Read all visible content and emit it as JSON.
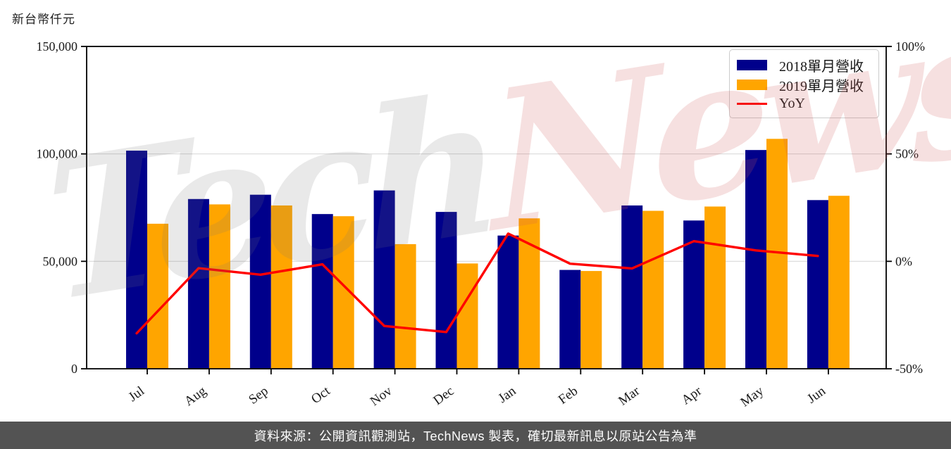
{
  "page": {
    "axis_title": "新台幣仟元"
  },
  "chart_data": {
    "type": "bar",
    "subtype": "grouped bars with YoY line overlay, dual y-axes",
    "categories": [
      "Jul",
      "Aug",
      "Sep",
      "Oct",
      "Nov",
      "Dec",
      "Jan",
      "Feb",
      "Mar",
      "Apr",
      "May",
      "Jun"
    ],
    "series": [
      {
        "name": "2018單月營收",
        "kind": "bar",
        "axis": "left",
        "color": "#00008B",
        "values": [
          101500,
          79000,
          81000,
          72000,
          83000,
          73000,
          62000,
          46000,
          76000,
          69000,
          101800,
          78500
        ]
      },
      {
        "name": "2019單月營收",
        "kind": "bar",
        "axis": "left",
        "color": "#FFA500",
        "values": [
          67500,
          76500,
          76000,
          71000,
          58000,
          49000,
          70000,
          45500,
          73500,
          75500,
          107000,
          80500
        ]
      },
      {
        "name": "YoY",
        "kind": "line",
        "axis": "right",
        "unit": "%",
        "color": "#FF0000",
        "values": [
          -33.5,
          -3.2,
          -6.2,
          -1.4,
          -30.1,
          -32.9,
          12.9,
          -1.1,
          -3.3,
          9.4,
          5.1,
          2.5
        ]
      }
    ],
    "left_axis": {
      "label": "新台幣仟元",
      "range": [
        0,
        150000
      ],
      "ticks": [
        {
          "v": 0,
          "label": "0"
        },
        {
          "v": 50000,
          "label": "50,000"
        },
        {
          "v": 100000,
          "label": "100,000"
        },
        {
          "v": 150000,
          "label": "150,000"
        }
      ]
    },
    "right_axis": {
      "range": [
        -50,
        100
      ],
      "ticks": [
        {
          "v": -50,
          "label": "-50%"
        },
        {
          "v": 0,
          "label": "0%"
        },
        {
          "v": 50,
          "label": "50%"
        },
        {
          "v": 100,
          "label": "100%"
        }
      ]
    },
    "grid_values": [
      50000,
      100000
    ],
    "grid_color": "#d9d9d9",
    "legend_position": "upper right"
  },
  "watermark": {
    "part1": "Tech",
    "part2": "News"
  },
  "footer": {
    "text": "資料來源：公開資訊觀測站，TechNews 製表，確切最新訊息以原站公告為準"
  }
}
